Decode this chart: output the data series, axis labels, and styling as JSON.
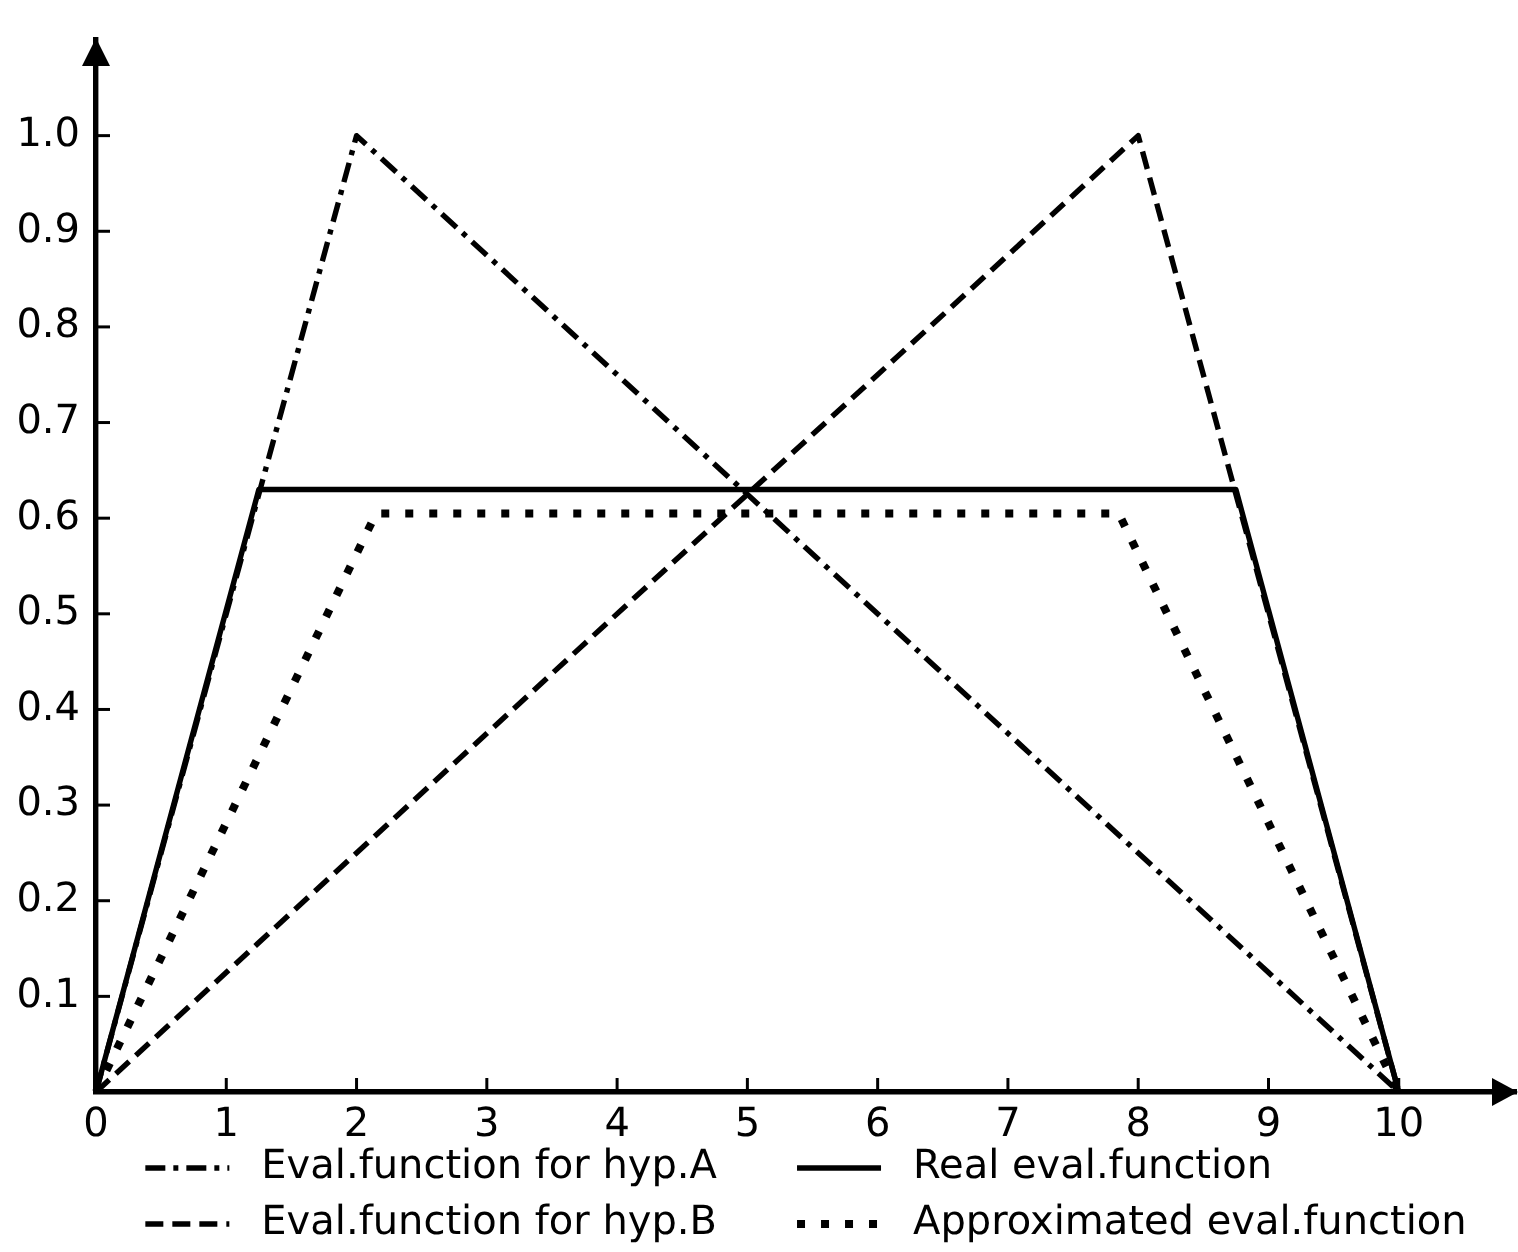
{
  "chart_data": {
    "type": "line",
    "xlim": [
      0,
      10.9
    ],
    "xticks": [
      0,
      1,
      2,
      3,
      4,
      5,
      6,
      7,
      8,
      9,
      10
    ],
    "ylim": [
      0,
      1.1
    ],
    "yticks": [
      0.1,
      0.2,
      0.3,
      0.4,
      0.5,
      0.6,
      0.7,
      0.8,
      0.9,
      {
        "value": 1,
        "label": "1.0"
      }
    ],
    "grid": false,
    "legend": "bottom",
    "marker": "none",
    "series": [
      {
        "name": "Eval.function for hyp.A",
        "color": "#000000",
        "line_style": "dashdot",
        "x": [
          0,
          2,
          10
        ],
        "values": [
          0,
          1,
          0
        ]
      },
      {
        "name": "Eval.function for hyp.B",
        "color": "#000000",
        "line_style": "dashed",
        "x": [
          0,
          8,
          10
        ],
        "values": [
          0,
          1,
          0
        ]
      },
      {
        "name": "Real eval.function",
        "color": "#000000",
        "line_style": "solid",
        "x": [
          0,
          1.25,
          8.75,
          10
        ],
        "values": [
          0,
          0.63,
          0.63,
          0
        ]
      },
      {
        "name": "Approximated eval.function",
        "color": "#000000",
        "line_style": "dotted",
        "x": [
          0,
          2.15,
          7.85,
          10
        ],
        "values": [
          0,
          0.605,
          0.605,
          0
        ]
      }
    ]
  }
}
